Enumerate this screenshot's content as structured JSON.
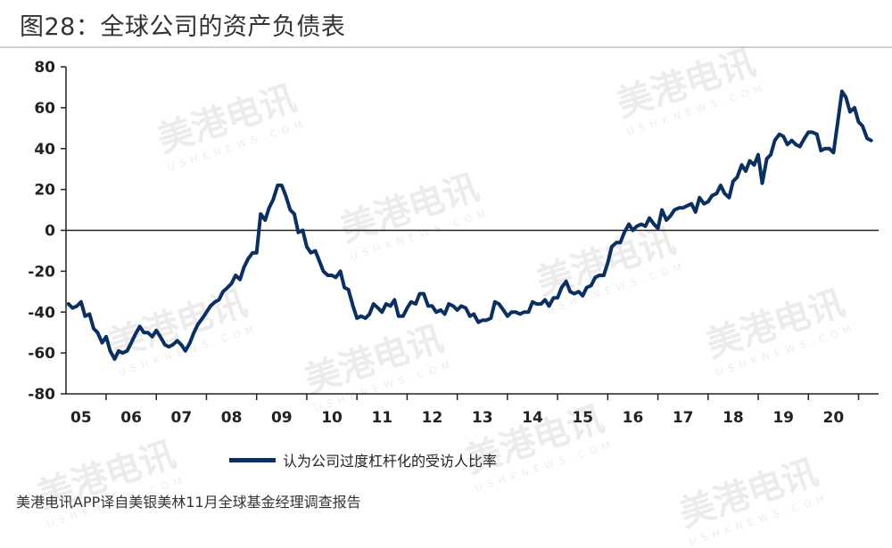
{
  "header": {
    "title": "图28：全球公司的资产负债表"
  },
  "footer": {
    "source": "美港电讯APP译自美银美林11月全球基金经理调查报告"
  },
  "watermark": {
    "text": "美港电讯",
    "subtext": "USHKNEWS.COM"
  },
  "colors": {
    "line": "#0b2f5e",
    "axis": "#222222",
    "zero_line": "#222222"
  },
  "chart_data": {
    "type": "line",
    "title": "",
    "xlabel": "",
    "ylabel": "",
    "ylim": [
      -80,
      80
    ],
    "yticks": [
      80,
      60,
      40,
      20,
      0,
      -20,
      -40,
      -60,
      -80
    ],
    "ytick_labels": [
      "80",
      "60",
      "40",
      "20",
      "0",
      "-20",
      "-40",
      "-60",
      "-80"
    ],
    "xlim": [
      2004.7,
      2020.9
    ],
    "xticks": [
      2005,
      2006,
      2007,
      2008,
      2009,
      2010,
      2011,
      2012,
      2013,
      2014,
      2015,
      2016,
      2017,
      2018,
      2019,
      2020
    ],
    "xtick_labels": [
      "05",
      "06",
      "07",
      "08",
      "09",
      "10",
      "11",
      "12",
      "13",
      "14",
      "15",
      "16",
      "17",
      "18",
      "19",
      "20"
    ],
    "legend": "bottom-center",
    "grid": false,
    "series": [
      {
        "name": "认为公司过度杠杆化的受访人比率",
        "x": [
          2004.75,
          2004.83,
          2004.92,
          2005.0,
          2005.08,
          2005.17,
          2005.25,
          2005.33,
          2005.42,
          2005.5,
          2005.58,
          2005.67,
          2005.75,
          2005.83,
          2005.92,
          2006.0,
          2006.08,
          2006.17,
          2006.25,
          2006.33,
          2006.42,
          2006.5,
          2006.58,
          2006.67,
          2006.75,
          2006.83,
          2006.92,
          2007.0,
          2007.08,
          2007.17,
          2007.25,
          2007.33,
          2007.42,
          2007.5,
          2007.58,
          2007.67,
          2007.75,
          2007.83,
          2007.92,
          2008.0,
          2008.08,
          2008.17,
          2008.25,
          2008.33,
          2008.42,
          2008.5,
          2008.58,
          2008.67,
          2008.75,
          2008.83,
          2008.92,
          2009.0,
          2009.08,
          2009.17,
          2009.25,
          2009.33,
          2009.42,
          2009.5,
          2009.58,
          2009.67,
          2009.75,
          2009.83,
          2009.92,
          2010.0,
          2010.08,
          2010.17,
          2010.25,
          2010.33,
          2010.42,
          2010.5,
          2010.58,
          2010.67,
          2010.75,
          2010.83,
          2010.92,
          2011.0,
          2011.08,
          2011.17,
          2011.25,
          2011.33,
          2011.42,
          2011.5,
          2011.58,
          2011.67,
          2011.75,
          2011.83,
          2011.92,
          2012.0,
          2012.08,
          2012.17,
          2012.25,
          2012.33,
          2012.42,
          2012.5,
          2012.58,
          2012.67,
          2012.75,
          2012.83,
          2012.92,
          2013.0,
          2013.08,
          2013.17,
          2013.25,
          2013.33,
          2013.42,
          2013.5,
          2013.58,
          2013.67,
          2013.75,
          2013.83,
          2013.92,
          2014.0,
          2014.08,
          2014.17,
          2014.25,
          2014.33,
          2014.42,
          2014.5,
          2014.58,
          2014.67,
          2014.75,
          2014.83,
          2014.92,
          2015.0,
          2015.08,
          2015.17,
          2015.25,
          2015.33,
          2015.42,
          2015.5,
          2015.58,
          2015.67,
          2015.75,
          2015.83,
          2015.92,
          2016.0,
          2016.08,
          2016.17,
          2016.25,
          2016.33,
          2016.42,
          2016.5,
          2016.58,
          2016.67,
          2016.75,
          2016.83,
          2016.92,
          2017.0,
          2017.08,
          2017.17,
          2017.25,
          2017.33,
          2017.42,
          2017.5,
          2017.58,
          2017.67,
          2017.75,
          2017.83,
          2017.92,
          2018.0,
          2018.08,
          2018.17,
          2018.25,
          2018.33,
          2018.42,
          2018.5,
          2018.58,
          2018.67,
          2018.75,
          2018.83,
          2018.92,
          2019.0,
          2019.08,
          2019.17,
          2019.25,
          2019.33,
          2019.42,
          2019.5,
          2019.58,
          2019.67,
          2019.75,
          2019.83,
          2019.92,
          2020.0,
          2020.08,
          2020.17,
          2020.25,
          2020.33,
          2020.42,
          2020.5,
          2020.58,
          2020.67,
          2020.75
        ],
        "values": [
          -36,
          -38,
          -37,
          -35,
          -42,
          -41,
          -48,
          -50,
          -55,
          -52,
          -59,
          -63,
          -59,
          -60,
          -59,
          -55,
          -51,
          -47,
          -50,
          -50,
          -52,
          -49,
          -52,
          -56,
          -57,
          -56,
          -54,
          -56,
          -59,
          -55,
          -50,
          -46,
          -43,
          -40,
          -37,
          -35,
          -34,
          -30,
          -28,
          -26,
          -22,
          -24,
          -18,
          -14,
          -11,
          -11,
          8,
          5,
          11,
          15,
          22,
          22,
          17,
          10,
          8,
          -1,
          0,
          -8,
          -11,
          -10,
          -15,
          -20,
          -22,
          -22,
          -23,
          -20,
          -28,
          -29,
          -37,
          -43,
          -42,
          -43,
          -41,
          -36,
          -38,
          -40,
          -36,
          -37,
          -34,
          -42,
          -42,
          -38,
          -35,
          -36,
          -31,
          -31,
          -37,
          -37,
          -40,
          -39,
          -41,
          -36,
          -37,
          -39,
          -37,
          -38,
          -42,
          -41,
          -45,
          -44,
          -44,
          -43,
          -35,
          -36,
          -39,
          -42,
          -40,
          -40,
          -41,
          -40,
          -40,
          -35,
          -36,
          -36,
          -34,
          -37,
          -33,
          -33,
          -28,
          -25,
          -30,
          -31,
          -30,
          -32,
          -28,
          -27,
          -23,
          -22,
          -22,
          -16,
          -8,
          -6,
          -6,
          -1,
          3,
          0,
          2,
          3,
          2,
          6,
          3,
          1,
          10,
          5,
          7,
          10,
          11,
          11,
          12,
          13,
          9,
          16,
          13,
          14,
          17,
          18,
          22,
          18,
          16,
          24,
          26,
          32,
          29,
          34,
          32,
          37,
          23,
          35,
          37,
          44,
          47,
          46,
          42,
          44,
          42,
          41,
          45,
          48,
          48,
          47,
          39,
          40,
          40,
          38,
          52,
          68,
          65,
          58,
          60,
          53,
          51,
          45,
          44
        ]
      }
    ]
  }
}
